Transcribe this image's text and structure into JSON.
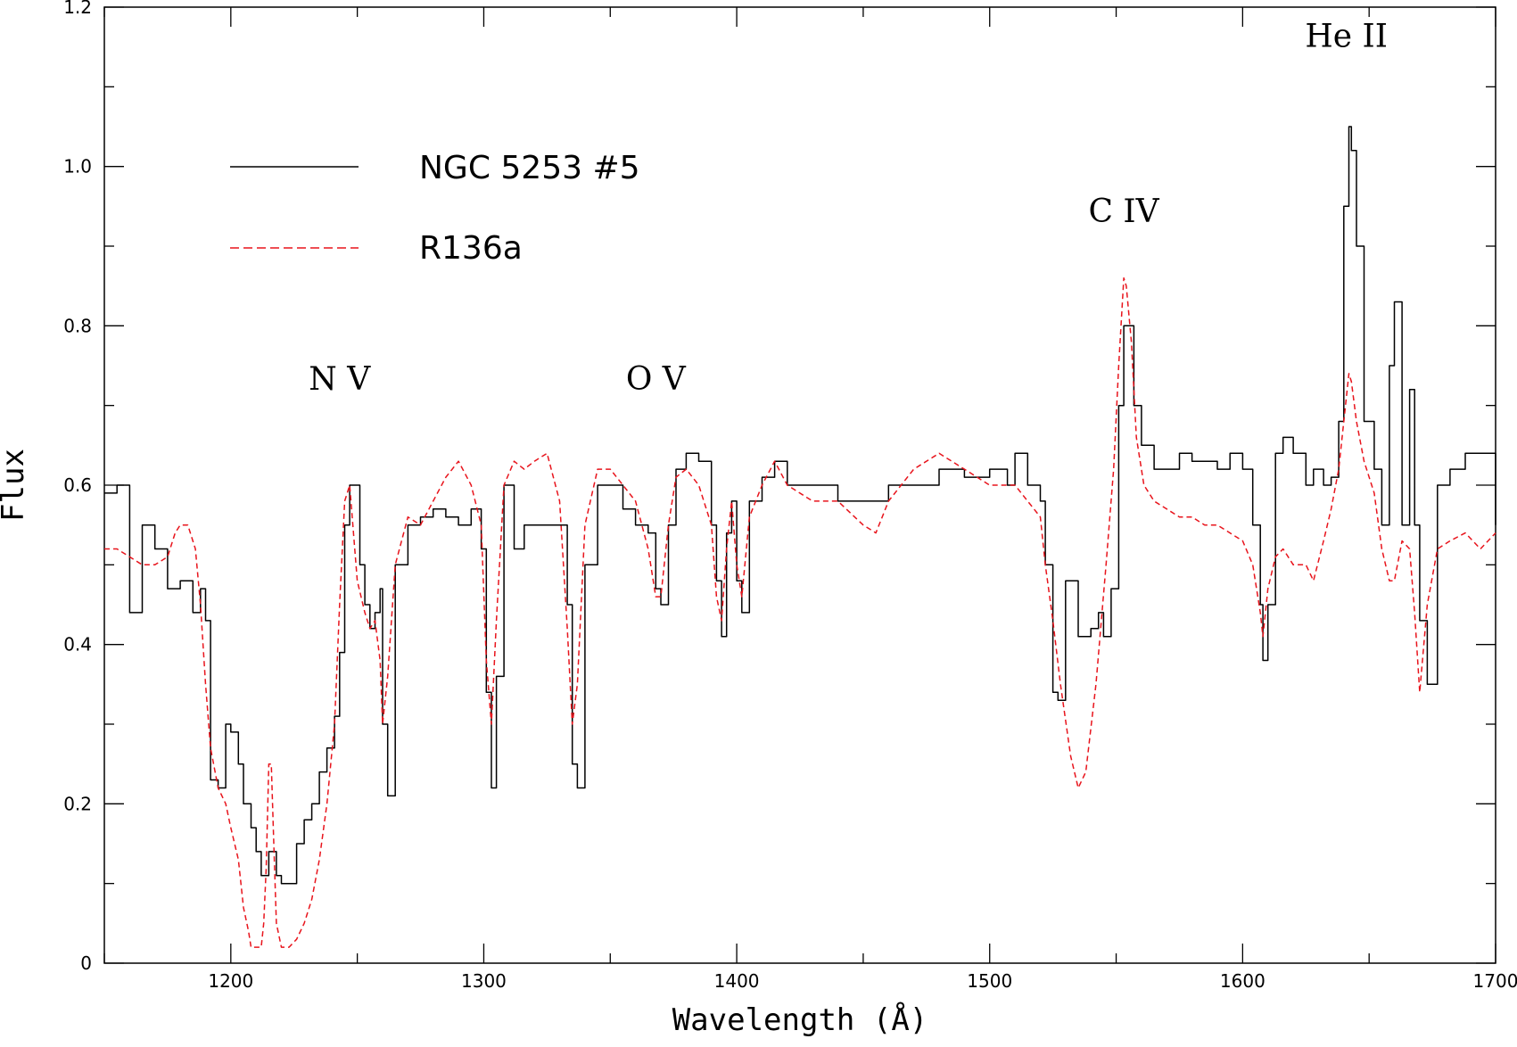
{
  "chart_data": {
    "type": "line",
    "xlabel": "Wavelength (Å)",
    "ylabel": "Flux",
    "xlim": [
      1150,
      1700
    ],
    "ylim": [
      0,
      1.2
    ],
    "x_ticks": [
      1200,
      1300,
      1400,
      1500,
      1600,
      1700
    ],
    "y_ticks": [
      0,
      0.2,
      0.4,
      0.6,
      0.8,
      1.0,
      1.2
    ],
    "x_tick_labels": [
      "1200",
      "1300",
      "1400",
      "1500",
      "1600",
      "1700"
    ],
    "y_tick_labels": [
      "0",
      "0.2",
      "0.4",
      "0.6",
      "0.8",
      "1.0",
      "1.2"
    ],
    "legend_position": "upper-left",
    "series": [
      {
        "name": "NGC 5253 #5",
        "color": "#000000",
        "style": "solid-step",
        "x": [
          1150,
          1155,
          1160,
          1165,
          1170,
          1175,
          1180,
          1185,
          1188,
          1190,
          1192,
          1195,
          1198,
          1200,
          1203,
          1205,
          1208,
          1210,
          1212,
          1215,
          1218,
          1220,
          1223,
          1226,
          1229,
          1232,
          1235,
          1238,
          1241,
          1243,
          1245,
          1247,
          1249,
          1251,
          1253,
          1255,
          1257,
          1259,
          1260,
          1262,
          1265,
          1270,
          1275,
          1280,
          1285,
          1290,
          1295,
          1299,
          1301,
          1303,
          1305,
          1308,
          1312,
          1316,
          1320,
          1325,
          1330,
          1333,
          1335,
          1337,
          1340,
          1345,
          1350,
          1355,
          1360,
          1365,
          1368,
          1370,
          1373,
          1376,
          1380,
          1385,
          1390,
          1392,
          1394,
          1396,
          1398,
          1400,
          1402,
          1405,
          1410,
          1415,
          1420,
          1430,
          1440,
          1450,
          1460,
          1470,
          1480,
          1490,
          1500,
          1507,
          1510,
          1515,
          1520,
          1522,
          1525,
          1527,
          1530,
          1535,
          1540,
          1543,
          1545,
          1548,
          1551,
          1553,
          1555,
          1557,
          1560,
          1565,
          1570,
          1575,
          1580,
          1585,
          1590,
          1595,
          1600,
          1604,
          1607,
          1608,
          1610,
          1613,
          1616,
          1620,
          1625,
          1628,
          1632,
          1635,
          1638,
          1640,
          1642,
          1643,
          1645,
          1648,
          1652,
          1655,
          1658,
          1660,
          1663,
          1666,
          1668,
          1670,
          1673,
          1677,
          1682,
          1688,
          1694,
          1700
        ],
        "y": [
          0.59,
          0.6,
          0.44,
          0.55,
          0.52,
          0.47,
          0.48,
          0.44,
          0.47,
          0.43,
          0.23,
          0.22,
          0.3,
          0.29,
          0.25,
          0.2,
          0.17,
          0.14,
          0.11,
          0.14,
          0.11,
          0.1,
          0.1,
          0.15,
          0.18,
          0.2,
          0.24,
          0.27,
          0.31,
          0.39,
          0.55,
          0.6,
          0.6,
          0.5,
          0.45,
          0.42,
          0.44,
          0.47,
          0.3,
          0.21,
          0.5,
          0.55,
          0.56,
          0.57,
          0.56,
          0.55,
          0.57,
          0.52,
          0.34,
          0.22,
          0.36,
          0.6,
          0.52,
          0.55,
          0.55,
          0.55,
          0.55,
          0.45,
          0.25,
          0.22,
          0.5,
          0.6,
          0.6,
          0.57,
          0.55,
          0.54,
          0.47,
          0.45,
          0.55,
          0.62,
          0.64,
          0.63,
          0.55,
          0.48,
          0.41,
          0.54,
          0.58,
          0.48,
          0.44,
          0.58,
          0.61,
          0.63,
          0.6,
          0.6,
          0.58,
          0.58,
          0.6,
          0.6,
          0.62,
          0.61,
          0.62,
          0.6,
          0.64,
          0.6,
          0.58,
          0.5,
          0.34,
          0.33,
          0.48,
          0.41,
          0.42,
          0.44,
          0.41,
          0.47,
          0.7,
          0.8,
          0.8,
          0.7,
          0.65,
          0.62,
          0.62,
          0.64,
          0.63,
          0.63,
          0.62,
          0.64,
          0.62,
          0.55,
          0.45,
          0.38,
          0.45,
          0.64,
          0.66,
          0.64,
          0.6,
          0.62,
          0.6,
          0.61,
          0.68,
          0.95,
          1.05,
          1.02,
          0.9,
          0.68,
          0.62,
          0.55,
          0.75,
          0.83,
          0.55,
          0.72,
          0.55,
          0.43,
          0.35,
          0.6,
          0.62,
          0.64,
          0.64,
          0.55
        ]
      },
      {
        "name": "R136a",
        "color": "#e8141c",
        "style": "dashed",
        "x": [
          1150,
          1155,
          1160,
          1165,
          1170,
          1175,
          1178,
          1180,
          1183,
          1186,
          1188,
          1190,
          1192,
          1195,
          1198,
          1200,
          1203,
          1205,
          1207,
          1208,
          1210,
          1212,
          1213,
          1214,
          1215,
          1216,
          1217,
          1218,
          1220,
          1223,
          1226,
          1229,
          1232,
          1235,
          1238,
          1241,
          1243,
          1245,
          1247,
          1250,
          1253,
          1255,
          1257,
          1259,
          1260,
          1262,
          1265,
          1270,
          1275,
          1280,
          1285,
          1290,
          1295,
          1299,
          1301,
          1303,
          1305,
          1308,
          1312,
          1316,
          1320,
          1325,
          1330,
          1333,
          1335,
          1337,
          1340,
          1345,
          1350,
          1355,
          1360,
          1365,
          1368,
          1370,
          1373,
          1376,
          1380,
          1385,
          1390,
          1392,
          1394,
          1396,
          1398,
          1400,
          1402,
          1405,
          1410,
          1415,
          1420,
          1430,
          1440,
          1450,
          1455,
          1460,
          1470,
          1480,
          1490,
          1500,
          1510,
          1515,
          1520,
          1522,
          1525,
          1528,
          1532,
          1535,
          1538,
          1542,
          1546,
          1549,
          1551,
          1553,
          1554,
          1556,
          1558,
          1561,
          1565,
          1570,
          1575,
          1580,
          1585,
          1590,
          1595,
          1600,
          1604,
          1607,
          1608,
          1610,
          1613,
          1616,
          1620,
          1625,
          1628,
          1632,
          1635,
          1638,
          1640,
          1642,
          1643,
          1645,
          1648,
          1652,
          1655,
          1658,
          1660,
          1663,
          1666,
          1668,
          1670,
          1673,
          1677,
          1682,
          1688,
          1694,
          1700
        ],
        "y": [
          0.52,
          0.52,
          0.51,
          0.5,
          0.5,
          0.51,
          0.54,
          0.55,
          0.55,
          0.52,
          0.45,
          0.35,
          0.27,
          0.22,
          0.2,
          0.17,
          0.13,
          0.07,
          0.04,
          0.02,
          0.02,
          0.02,
          0.05,
          0.12,
          0.25,
          0.25,
          0.15,
          0.05,
          0.02,
          0.02,
          0.03,
          0.05,
          0.08,
          0.13,
          0.2,
          0.3,
          0.45,
          0.58,
          0.6,
          0.48,
          0.44,
          0.42,
          0.43,
          0.38,
          0.3,
          0.36,
          0.5,
          0.56,
          0.55,
          0.58,
          0.61,
          0.63,
          0.6,
          0.55,
          0.38,
          0.3,
          0.43,
          0.6,
          0.63,
          0.62,
          0.63,
          0.64,
          0.58,
          0.42,
          0.3,
          0.35,
          0.55,
          0.62,
          0.62,
          0.6,
          0.58,
          0.52,
          0.46,
          0.46,
          0.55,
          0.61,
          0.62,
          0.6,
          0.55,
          0.46,
          0.43,
          0.52,
          0.58,
          0.5,
          0.46,
          0.56,
          0.6,
          0.63,
          0.6,
          0.58,
          0.58,
          0.55,
          0.54,
          0.58,
          0.62,
          0.64,
          0.62,
          0.6,
          0.6,
          0.58,
          0.56,
          0.5,
          0.43,
          0.35,
          0.26,
          0.22,
          0.24,
          0.35,
          0.5,
          0.62,
          0.75,
          0.86,
          0.85,
          0.78,
          0.66,
          0.6,
          0.58,
          0.57,
          0.56,
          0.56,
          0.55,
          0.55,
          0.54,
          0.53,
          0.5,
          0.44,
          0.41,
          0.47,
          0.51,
          0.52,
          0.5,
          0.5,
          0.48,
          0.53,
          0.57,
          0.62,
          0.68,
          0.74,
          0.73,
          0.68,
          0.63,
          0.59,
          0.52,
          0.48,
          0.48,
          0.53,
          0.52,
          0.44,
          0.34,
          0.45,
          0.52,
          0.53,
          0.54,
          0.52,
          0.54
        ]
      }
    ],
    "annotations": [
      {
        "text": "N V",
        "x": 1243,
        "y": 0.72
      },
      {
        "text": "O V",
        "x": 1368,
        "y": 0.72
      },
      {
        "text": "C IV",
        "x": 1553,
        "y": 0.93
      },
      {
        "text": "He II",
        "x": 1641,
        "y": 1.15
      }
    ]
  }
}
